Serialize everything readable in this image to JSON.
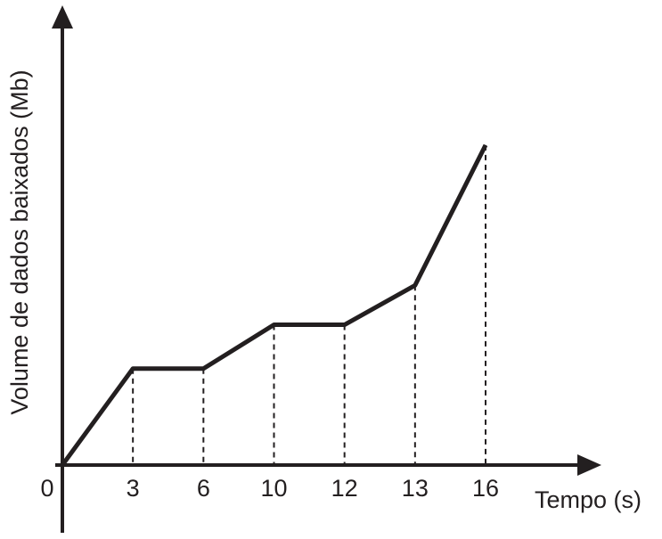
{
  "chart_data": {
    "type": "line",
    "x_label": "Tempo (s)",
    "y_label": "Volume de dados baixados (Mb)",
    "categories": [
      "0",
      "3",
      "6",
      "10",
      "12",
      "13",
      "16"
    ],
    "values": [
      0,
      22,
      22,
      32,
      32,
      41,
      73
    ],
    "color": "#231f20",
    "ylim": [
      0,
      100
    ]
  }
}
